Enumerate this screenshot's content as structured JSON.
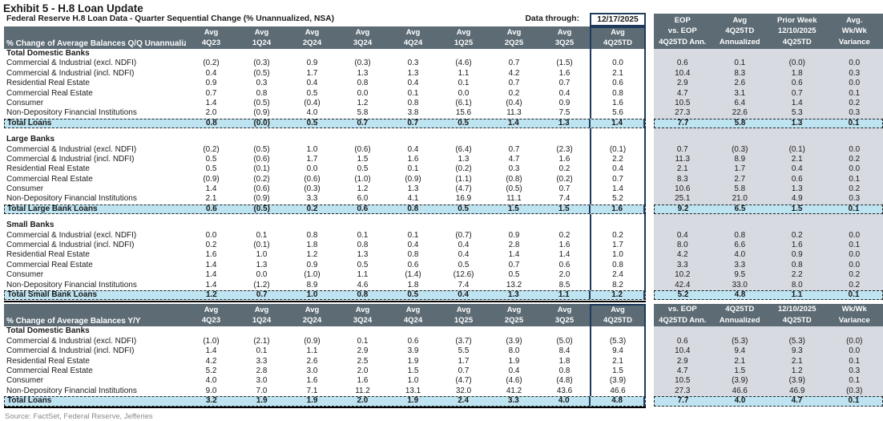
{
  "meta": {
    "title": "Exhibit 5 - H.8 Loan Update",
    "subtitle": "Federal Reserve H.8 Loan Data - Quarter Sequential Change (% Unannualized, NSA)",
    "data_through_label": "Data through:",
    "data_through_value": "12/17/2025",
    "source": "Source: FactSet, Federal Reserve, Jefferies"
  },
  "colors": {
    "header_bg": "#5C6B74",
    "header_text": "#FFFFFF",
    "total_row_bg": "#BEE3F1",
    "right_panel_bg": "#D8DAE2",
    "box_border": "#1F3B5C"
  },
  "quarter_headers": {
    "line1": "Avg",
    "quarters": [
      "4Q23",
      "1Q24",
      "2Q24",
      "3Q24",
      "4Q24",
      "1Q25",
      "2Q25",
      "3Q25",
      "4Q25TD"
    ]
  },
  "right_headers_qq": [
    [
      "EOP",
      "vs. EOP",
      "4Q25TD Ann."
    ],
    [
      "Avg",
      "4Q25TD",
      "Annualized"
    ],
    [
      "Prior Week",
      "12/10/2025",
      "4Q25TD"
    ],
    [
      "Avg.",
      "Wk/Wk",
      "Variance"
    ]
  ],
  "right_headers_yy": [
    [
      "vs. EOP",
      "4Q25TD Ann."
    ],
    [
      "4Q25TD",
      "Annualized"
    ],
    [
      "12/10/2025",
      "4Q25TD"
    ],
    [
      "Wk/Wk",
      "Variance"
    ]
  ],
  "qq_table": {
    "header_label": "% Change of Average Balances Q/Q Unannualized",
    "sections": [
      {
        "name": "Total Domestic Banks",
        "rows": [
          {
            "label": "Commercial & Industrial (excl. NDFI)",
            "values": [
              "(0.2)",
              "(0.3)",
              "0.9",
              "(0.3)",
              "0.3",
              "(4.6)",
              "0.7",
              "(1.5)",
              "0.0"
            ],
            "right": [
              "0.6",
              "0.1",
              "(0.0)",
              "0.0"
            ]
          },
          {
            "label": "Commercial & Industrial (incl. NDFI)",
            "values": [
              "0.4",
              "(0.5)",
              "1.7",
              "1.3",
              "1.3",
              "1.1",
              "4.2",
              "1.6",
              "2.1"
            ],
            "right": [
              "10.4",
              "8.3",
              "1.8",
              "0.3"
            ]
          },
          {
            "label": "Residential Real Estate",
            "values": [
              "0.9",
              "0.3",
              "0.4",
              "0.8",
              "0.4",
              "0.1",
              "0.7",
              "0.7",
              "0.6"
            ],
            "right": [
              "2.9",
              "2.6",
              "0.6",
              "0.0"
            ]
          },
          {
            "label": "Commercial Real Estate",
            "values": [
              "0.7",
              "0.8",
              "0.5",
              "0.0",
              "0.1",
              "0.0",
              "0.2",
              "0.4",
              "0.8"
            ],
            "right": [
              "4.7",
              "3.1",
              "0.7",
              "0.1"
            ]
          },
          {
            "label": "Consumer",
            "values": [
              "1.4",
              "(0.5)",
              "(0.4)",
              "1.2",
              "0.8",
              "(6.1)",
              "(0.4)",
              "0.9",
              "1.6"
            ],
            "right": [
              "10.5",
              "6.4",
              "1.4",
              "0.2"
            ]
          },
          {
            "label": "Non-Depository Financial Institutions",
            "values": [
              "2.0",
              "(0.9)",
              "4.0",
              "5.8",
              "3.8",
              "15.6",
              "11.3",
              "7.5",
              "5.6"
            ],
            "right": [
              "27.3",
              "22.6",
              "5.3",
              "0.3"
            ]
          }
        ],
        "total": {
          "label": "Total Loans",
          "values": [
            "0.8",
            "(0.0)",
            "0.5",
            "0.7",
            "0.7",
            "0.5",
            "1.4",
            "1.3",
            "1.4"
          ],
          "right": [
            "7.7",
            "5.8",
            "1.3",
            "0.1"
          ]
        }
      },
      {
        "name": "Large Banks",
        "rows": [
          {
            "label": "Commercial & Industrial (excl. NDFI)",
            "values": [
              "(0.2)",
              "(0.5)",
              "1.0",
              "(0.6)",
              "0.4",
              "(6.4)",
              "0.7",
              "(2.3)",
              "(0.1)"
            ],
            "right": [
              "0.7",
              "(0.3)",
              "(0.1)",
              "0.0"
            ]
          },
          {
            "label": "Commercial & Industrial (incl. NDFI)",
            "values": [
              "0.5",
              "(0.6)",
              "1.7",
              "1.5",
              "1.6",
              "1.3",
              "4.7",
              "1.6",
              "2.2"
            ],
            "right": [
              "11.3",
              "8.9",
              "2.1",
              "0.2"
            ]
          },
          {
            "label": "Residential Real Estate",
            "values": [
              "0.5",
              "(0.1)",
              "0.0",
              "0.5",
              "0.1",
              "(0.2)",
              "0.3",
              "0.2",
              "0.4"
            ],
            "right": [
              "2.1",
              "1.7",
              "0.4",
              "0.0"
            ]
          },
          {
            "label": "Commercial Real Estate",
            "values": [
              "(0.9)",
              "(0.2)",
              "(0.6)",
              "(1.0)",
              "(0.9)",
              "(1.1)",
              "(0.8)",
              "(0.2)",
              "0.7"
            ],
            "right": [
              "8.3",
              "2.7",
              "0.6",
              "0.1"
            ]
          },
          {
            "label": "Consumer",
            "values": [
              "1.4",
              "(0.6)",
              "(0.3)",
              "1.2",
              "1.3",
              "(4.7)",
              "(0.5)",
              "0.7",
              "1.4"
            ],
            "right": [
              "10.6",
              "5.8",
              "1.3",
              "0.2"
            ]
          },
          {
            "label": "Non-Depository Financial Institutions",
            "values": [
              "2.1",
              "(0.9)",
              "3.3",
              "6.0",
              "4.1",
              "16.9",
              "11.1",
              "7.4",
              "5.2"
            ],
            "right": [
              "25.1",
              "21.0",
              "4.9",
              "0.3"
            ]
          }
        ],
        "total": {
          "label": "Total Large Bank Loans",
          "values": [
            "0.6",
            "(0.5)",
            "0.2",
            "0.6",
            "0.8",
            "0.5",
            "1.5",
            "1.5",
            "1.6"
          ],
          "right": [
            "9.2",
            "6.5",
            "1.5",
            "0.1"
          ]
        }
      },
      {
        "name": "Small Banks",
        "rows": [
          {
            "label": "Commercial & Industrial (excl. NDFI)",
            "values": [
              "0.0",
              "0.1",
              "0.8",
              "0.1",
              "0.1",
              "(0.7)",
              "0.9",
              "0.2",
              "0.2"
            ],
            "right": [
              "0.4",
              "0.8",
              "0.2",
              "0.0"
            ]
          },
          {
            "label": "Commercial & Industrial (incl. NDFI)",
            "values": [
              "0.2",
              "(0.1)",
              "1.8",
              "0.8",
              "0.4",
              "0.4",
              "2.8",
              "1.6",
              "1.7"
            ],
            "right": [
              "8.0",
              "6.6",
              "1.6",
              "0.1"
            ]
          },
          {
            "label": "Residential Real Estate",
            "values": [
              "1.6",
              "1.0",
              "1.2",
              "1.3",
              "0.8",
              "0.4",
              "1.4",
              "1.4",
              "1.0"
            ],
            "right": [
              "4.2",
              "4.0",
              "0.9",
              "0.0"
            ]
          },
          {
            "label": "Commercial Real Estate",
            "values": [
              "1.4",
              "1.3",
              "0.9",
              "0.5",
              "0.6",
              "0.5",
              "0.7",
              "0.6",
              "0.8"
            ],
            "right": [
              "3.3",
              "3.3",
              "0.8",
              "0.0"
            ]
          },
          {
            "label": "Consumer",
            "values": [
              "1.4",
              "0.0",
              "(1.0)",
              "1.1",
              "(1.4)",
              "(12.6)",
              "0.5",
              "2.0",
              "2.4"
            ],
            "right": [
              "10.2",
              "9.5",
              "2.2",
              "0.2"
            ]
          },
          {
            "label": "Non-Depository Financial Institutions",
            "values": [
              "1.4",
              "(1.2)",
              "8.9",
              "4.6",
              "1.8",
              "7.4",
              "13.2",
              "8.5",
              "8.2"
            ],
            "right": [
              "42.4",
              "33.0",
              "8.0",
              "0.2"
            ]
          }
        ],
        "total": {
          "label": "Total Small Bank Loans",
          "values": [
            "1.2",
            "0.7",
            "1.0",
            "0.8",
            "0.5",
            "0.4",
            "1.3",
            "1.1",
            "1.2"
          ],
          "right": [
            "5.2",
            "4.8",
            "1.1",
            "0.1"
          ]
        }
      }
    ]
  },
  "yy_table": {
    "header_label": "% Change of Average Balances Y/Y",
    "sections": [
      {
        "name": "Total Domestic Banks",
        "rows": [
          {
            "label": "Commercial & Industrial (excl. NDFI)",
            "values": [
              "(1.0)",
              "(2.1)",
              "(0.9)",
              "0.1",
              "0.6",
              "(3.7)",
              "(3.9)",
              "(5.0)",
              "(5.3)"
            ],
            "right": [
              "0.6",
              "(5.3)",
              "(5.3)",
              "(0.0)"
            ]
          },
          {
            "label": "Commercial & Industrial (incl. NDFI)",
            "values": [
              "1.4",
              "0.1",
              "1.1",
              "2.9",
              "3.9",
              "5.5",
              "8.0",
              "8.4",
              "9.4"
            ],
            "right": [
              "10.4",
              "9.4",
              "9.3",
              "0.0"
            ]
          },
          {
            "label": "Residential Real Estate",
            "values": [
              "4.2",
              "3.3",
              "2.6",
              "2.5",
              "1.9",
              "1.7",
              "1.9",
              "1.8",
              "2.1"
            ],
            "right": [
              "2.9",
              "2.1",
              "2.1",
              "0.1"
            ]
          },
          {
            "label": "Commercial Real Estate",
            "values": [
              "5.2",
              "2.8",
              "3.0",
              "2.0",
              "1.5",
              "0.7",
              "0.4",
              "0.8",
              "1.5"
            ],
            "right": [
              "4.7",
              "1.5",
              "1.2",
              "0.3"
            ]
          },
          {
            "label": "Consumer",
            "values": [
              "4.0",
              "3.0",
              "1.6",
              "1.6",
              "1.0",
              "(4.7)",
              "(4.6)",
              "(4.8)",
              "(3.9)"
            ],
            "right": [
              "10.5",
              "(3.9)",
              "(3.9)",
              "0.1"
            ]
          },
          {
            "label": "Non-Depository Financial Institutions",
            "values": [
              "9.0",
              "7.0",
              "7.1",
              "11.2",
              "13.1",
              "32.0",
              "41.2",
              "43.6",
              "46.6"
            ],
            "right": [
              "27.3",
              "46.6",
              "46.9",
              "(0.3)"
            ]
          }
        ],
        "total": {
          "label": "Total Loans",
          "values": [
            "3.2",
            "1.9",
            "1.9",
            "2.0",
            "1.9",
            "2.4",
            "3.3",
            "4.0",
            "4.8"
          ],
          "right": [
            "7.7",
            "4.0",
            "4.7",
            "0.1"
          ]
        }
      }
    ]
  }
}
